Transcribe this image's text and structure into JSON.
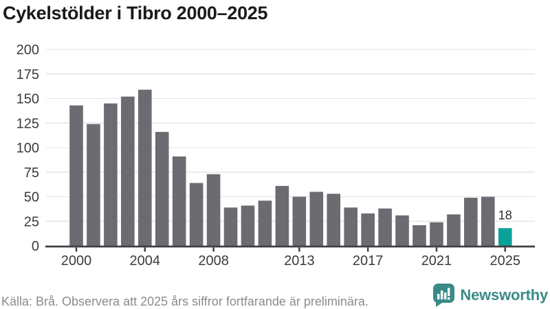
{
  "title": "Cykelstölder i Tibro 2000–2025",
  "chart_data": {
    "type": "bar",
    "x": [
      2000,
      2001,
      2002,
      2003,
      2004,
      2005,
      2006,
      2007,
      2008,
      2009,
      2010,
      2011,
      2012,
      2013,
      2014,
      2015,
      2016,
      2017,
      2018,
      2019,
      2020,
      2021,
      2022,
      2023,
      2024,
      2025
    ],
    "values": [
      143,
      124,
      145,
      152,
      159,
      116,
      91,
      64,
      73,
      39,
      41,
      46,
      61,
      50,
      55,
      53,
      39,
      33,
      38,
      31,
      21,
      24,
      32,
      49,
      50,
      18
    ],
    "title": "Cykelstölder i Tibro 2000–2025",
    "xlabel": "",
    "ylabel": "",
    "ylim": [
      0,
      200
    ],
    "yticks": [
      0,
      25,
      50,
      75,
      100,
      125,
      150,
      175,
      200
    ],
    "xticks": [
      2000,
      2004,
      2008,
      2013,
      2017,
      2021,
      2025
    ],
    "grid": true,
    "legend": "none",
    "bar_color": "#6b6b72",
    "highlight_color": "#0ba198",
    "highlight": {
      "year": 2025,
      "label": "18"
    },
    "axis_label_color": "#3b3b40",
    "axis_line_color": "#3f3f44",
    "gridline_color": "#e4e4e4"
  },
  "footer": {
    "source_text": "Källa: Brå. Observera att 2025 års siffror fortfarande är preliminära."
  },
  "logo": {
    "brand": "Newsworthy",
    "icon": "newsworthy-chart-bubble-icon",
    "color": "#398b88"
  }
}
